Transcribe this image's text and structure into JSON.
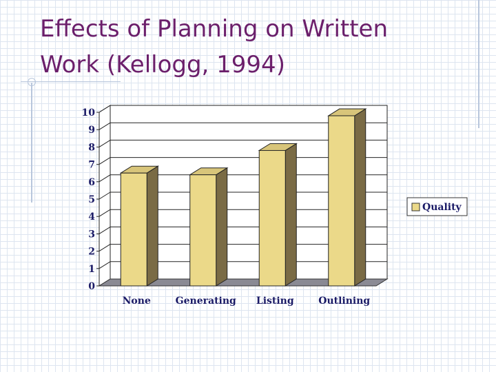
{
  "slide": {
    "title_line1": "Effects of Planning on Written",
    "title_line2": "Work (Kellogg, 1994)"
  },
  "chart_data": {
    "type": "bar",
    "categories": [
      "None",
      "Generating",
      "Listing",
      "Outlining"
    ],
    "series": [
      {
        "name": "Quality",
        "values": [
          6.5,
          6.4,
          7.8,
          9.8
        ]
      }
    ],
    "ylim": [
      0,
      10
    ],
    "yticks": [
      0,
      1,
      2,
      3,
      4,
      5,
      6,
      7,
      8,
      9,
      10
    ],
    "grid": true,
    "legend": "right",
    "colors": {
      "bar_front": "#ebd989",
      "bar_side": "#7a6b45",
      "bar_top": "#d8c57a",
      "floor": "#8a8a94",
      "title": "#6b1f6b",
      "axis_text": "#1a1a66"
    }
  }
}
